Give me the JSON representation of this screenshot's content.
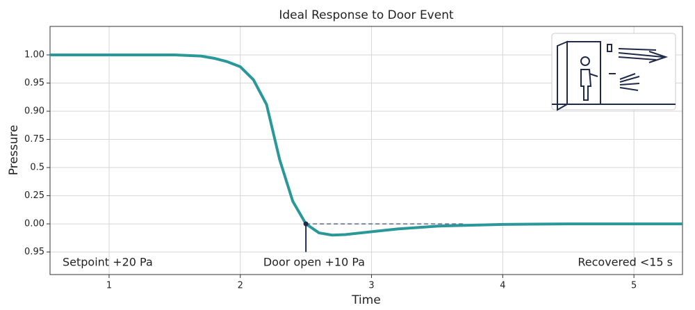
{
  "chart_data": {
    "type": "line",
    "title": "Ideal Response to Door Event",
    "xlabel": "Time",
    "ylabel": "Pressure",
    "x": [
      0.55,
      1.0,
      1.5,
      1.7,
      1.8,
      1.9,
      2.0,
      2.1,
      2.2,
      2.3,
      2.4,
      2.5,
      2.6,
      2.7,
      2.8,
      3.0,
      3.2,
      3.5,
      4.0,
      4.5,
      5.0,
      5.37
    ],
    "series": [
      {
        "name": "Pressure",
        "color": "#2a9799",
        "values": [
          1.5,
          1.5,
          1.5,
          1.49,
          1.47,
          1.44,
          1.395,
          1.28,
          1.06,
          0.57,
          0.2,
          0,
          -0.08,
          -0.1,
          -0.095,
          -0.07,
          -0.045,
          -0.02,
          -0.005,
          0,
          0,
          0
        ]
      }
    ],
    "xlim": [
      0.55,
      5.37
    ],
    "ylim": [
      -0.45,
      1.753
    ],
    "xticks": [
      1,
      2,
      3,
      4,
      5
    ],
    "yticks": [
      {
        "value": 1.5,
        "label": "1.00"
      },
      {
        "value": 1.25,
        "label": "0.95"
      },
      {
        "value": 1.0,
        "label": "0.90"
      },
      0.75,
      0.5,
      0.25,
      {
        "value": 0,
        "label": "0.00"
      },
      {
        "value": -0.25,
        "label": "0.95"
      }
    ],
    "grid": true,
    "event": {
      "x": 2.5,
      "y": 0,
      "y_end": -0.25
    },
    "reference": {
      "y": 0,
      "x_end": 3.7
    },
    "annotations": [
      "Setpoint +20 Pa",
      "Door open +10 Pa",
      "Recovered <15 s"
    ]
  }
}
